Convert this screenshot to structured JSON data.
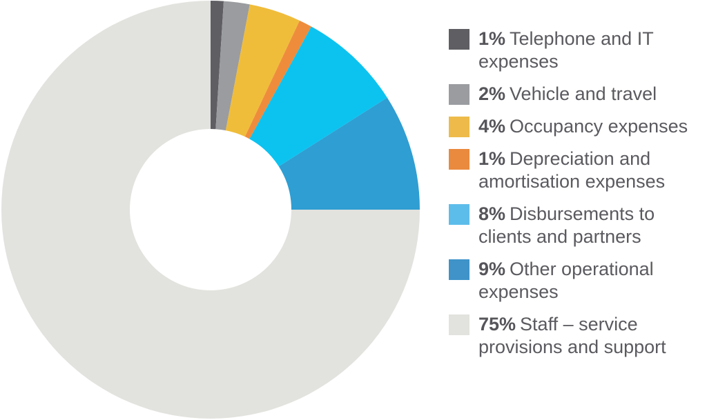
{
  "chart_data": {
    "type": "pie",
    "donut": true,
    "slices": [
      {
        "value": 1,
        "pct_label": "1%",
        "label": "Telephone and IT expenses",
        "color": "#5f5e63"
      },
      {
        "value": 2,
        "pct_label": "2%",
        "label": "Vehicle and travel",
        "color": "#9a9ca0"
      },
      {
        "value": 4,
        "pct_label": "4%",
        "label": "Occupancy expenses",
        "color": "#f0bd3a"
      },
      {
        "value": 1,
        "pct_label": "1%",
        "label": "Depreciation and amortisation expenses",
        "color": "#ef8c3c"
      },
      {
        "value": 8,
        "pct_label": "8%",
        "label": "Disbursements to clients and partners",
        "color": "#0cc3f0"
      },
      {
        "value": 9,
        "pct_label": "9%",
        "label": "Other operational expenses",
        "color": "#2f9ed2"
      },
      {
        "value": 75,
        "pct_label": "75%",
        "label": "Staff – service provisions and support",
        "color": "#e2e2de"
      }
    ],
    "legend_position": "right",
    "legend_swatch_colors": [
      "#5f5e63",
      "#9a9ca0",
      "#eebb4a",
      "#e98a3e",
      "#5dbdea",
      "#3f93c9",
      "#e2e2de"
    ]
  }
}
